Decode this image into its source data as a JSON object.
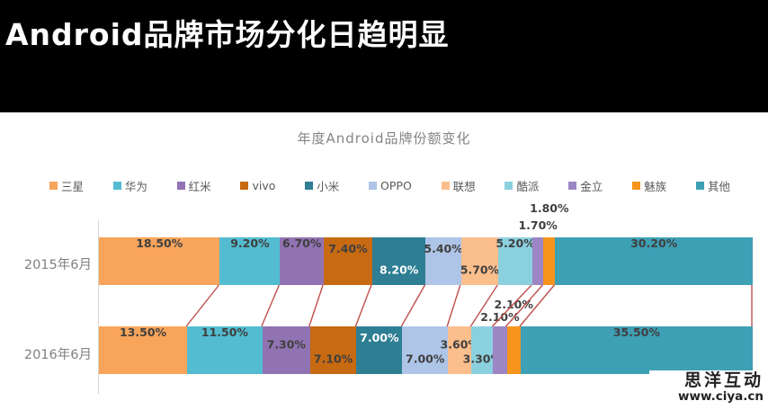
{
  "banner": {
    "title": "Android品牌市场分化日趋明显",
    "bg_color": "#000000",
    "text_color": "#ffffff"
  },
  "watermark": {
    "line1": "思洋互动",
    "line2": "www.ciya.cn"
  },
  "chart_data": {
    "type": "bar",
    "variant": "stacked-horizontal",
    "title": "年度Android品牌份额变化",
    "categories": [
      "2015年6月",
      "2016年6月"
    ],
    "unit": "%",
    "xlim": [
      0,
      100
    ],
    "grid": false,
    "legend_position": "top",
    "connector_color": "#C0504D",
    "axis_color": "#D6D6D6",
    "label_color": "#3F3F3F",
    "series": [
      {
        "name": "三星",
        "color": "#F8A45A",
        "values": [
          18.5,
          13.5
        ],
        "labels": [
          "18.50%",
          "13.50%"
        ]
      },
      {
        "name": "华为",
        "color": "#53BCD1",
        "values": [
          9.2,
          11.5
        ],
        "labels": [
          "9.20%",
          "11.50%"
        ]
      },
      {
        "name": "红米",
        "color": "#9173B3",
        "values": [
          6.7,
          7.3
        ],
        "labels": [
          "6.70%",
          "7.30%"
        ]
      },
      {
        "name": "vivo",
        "color": "#C76A11",
        "values": [
          7.4,
          7.1
        ],
        "labels": [
          "7.40%",
          "7.10%"
        ]
      },
      {
        "name": "小米",
        "color": "#2E7E94",
        "values": [
          8.2,
          7.0
        ],
        "labels": [
          "8.20%",
          "7.00%"
        ]
      },
      {
        "name": "OPPO",
        "color": "#AEC5E8",
        "values": [
          5.4,
          7.0
        ],
        "labels": [
          "5.40%",
          "7.00%"
        ]
      },
      {
        "name": "联想",
        "color": "#FBBE8D",
        "values": [
          5.7,
          3.6
        ],
        "labels": [
          "5.70%",
          "3.60%"
        ]
      },
      {
        "name": "酷派",
        "color": "#8BD0DF",
        "values": [
          5.2,
          3.3
        ],
        "labels": [
          "5.20%",
          "3.30%"
        ]
      },
      {
        "name": "金立",
        "color": "#9C86C4",
        "values": [
          1.7,
          2.1
        ],
        "labels": [
          "1.70%",
          "2.10%"
        ]
      },
      {
        "name": "魅族",
        "color": "#F7941E",
        "values": [
          1.8,
          2.1
        ],
        "labels": [
          "1.80%",
          "2.10%"
        ]
      },
      {
        "name": "其他",
        "color": "#3EA0B5",
        "values": [
          30.2,
          35.5
        ],
        "labels": [
          "30.20%",
          "35.50%"
        ]
      }
    ]
  }
}
